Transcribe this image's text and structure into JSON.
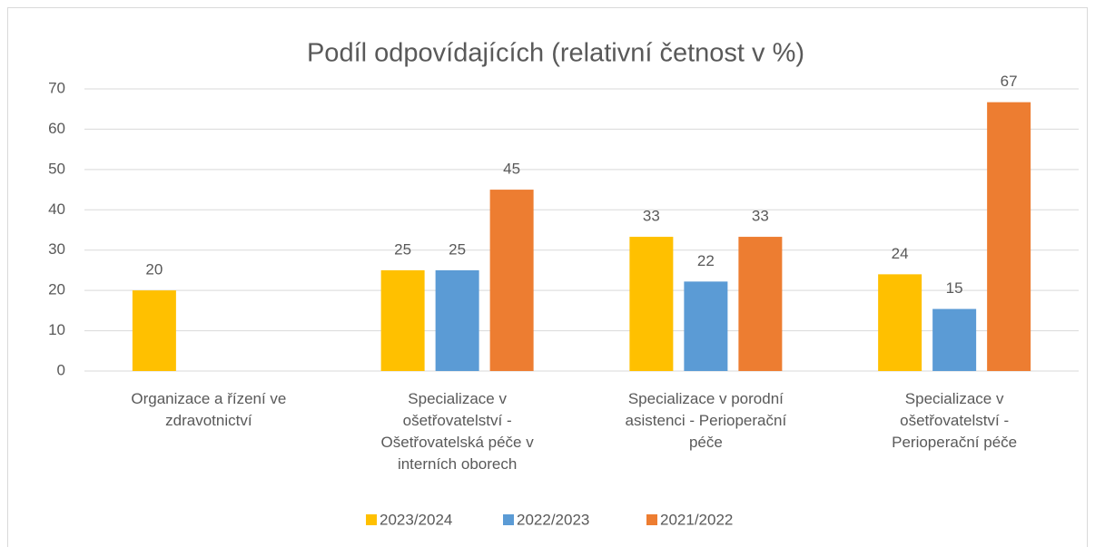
{
  "chart_data": {
    "type": "bar",
    "title": "Podíl odpovídajících (relativní četnost v %)",
    "categories": [
      "Organizace a řízení ve zdravotnictví",
      "Specializace v ošetřovatelství - Ošetřovatelská péče v interních oborech",
      "Specializace v porodní asistenci - Perioperační péče",
      "Specializace v ošetřovatelství - Perioperační péče"
    ],
    "series": [
      {
        "name": "2023/2024",
        "color": "#ffc000",
        "values": [
          20,
          25,
          33.3,
          24
        ],
        "value_labels": [
          "20",
          "25",
          "33",
          "24"
        ]
      },
      {
        "name": "2022/2023",
        "color": "#5b9bd5",
        "values": [
          null,
          25,
          22.2,
          15.4
        ],
        "value_labels": [
          null,
          "25",
          "22",
          "15"
        ]
      },
      {
        "name": "2021/2022",
        "color": "#ed7d31",
        "values": [
          null,
          45,
          33.3,
          66.7
        ],
        "value_labels": [
          null,
          "45",
          "33",
          "67"
        ]
      }
    ],
    "ylim": [
      0,
      70
    ],
    "yticks": [
      0,
      10,
      20,
      30,
      40,
      50,
      60,
      70
    ],
    "grid": true,
    "legend": "bottom"
  }
}
